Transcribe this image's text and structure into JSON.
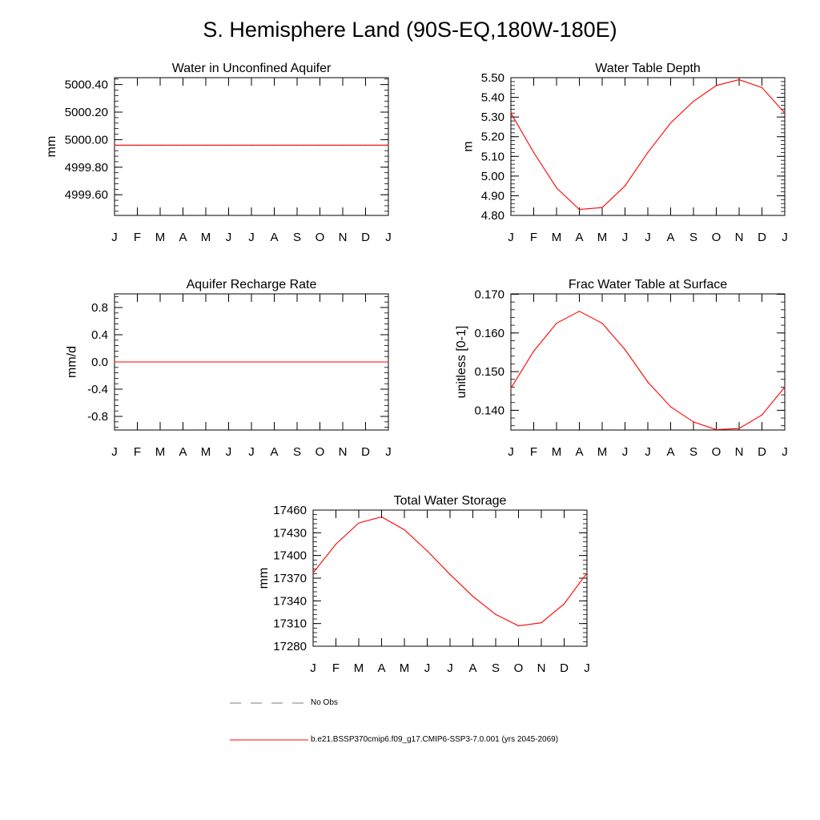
{
  "title": "S. Hemisphere Land (90S-EQ,180W-180E)",
  "month_labels": [
    "J",
    "F",
    "M",
    "A",
    "M",
    "J",
    "J",
    "A",
    "S",
    "O",
    "N",
    "D",
    "J"
  ],
  "legend": {
    "obs_label": "No Obs",
    "model_label": "b.e21.BSSP370cmip6.f09_g17.CMIP6-SSP3-7.0.001 (yrs 2045-2069)",
    "obs_color": "#7f7f7f",
    "model_color": "#ff0000"
  },
  "chart_data": [
    {
      "type": "line",
      "title": "Water in Unconfined Aquifer",
      "ylabel": "mm",
      "ylim": [
        4999.45,
        5000.45
      ],
      "yticks": [
        4999.6,
        4999.8,
        5000.0,
        5000.2,
        5000.4
      ],
      "ytick_labels": [
        "4999.60",
        "4999.80",
        "5000.00",
        "5000.20",
        "5000.40"
      ],
      "minor_step": 0.04,
      "series": [
        {
          "values": [
            4999.96,
            4999.96,
            4999.96,
            4999.96,
            4999.96,
            4999.96,
            4999.96,
            4999.96,
            4999.96,
            4999.96,
            4999.96,
            4999.96,
            4999.96
          ]
        }
      ]
    },
    {
      "type": "line",
      "title": "Water Table Depth",
      "ylabel": "m",
      "ylim": [
        4.8,
        5.5
      ],
      "yticks": [
        4.8,
        4.9,
        5.0,
        5.1,
        5.2,
        5.3,
        5.4,
        5.5
      ],
      "ytick_labels": [
        "4.80",
        "4.90",
        "5.00",
        "5.10",
        "5.20",
        "5.30",
        "5.40",
        "5.50"
      ],
      "minor_step": 0.02,
      "series": [
        {
          "values": [
            5.32,
            5.12,
            4.94,
            4.83,
            4.84,
            4.95,
            5.12,
            5.27,
            5.38,
            5.46,
            5.49,
            5.45,
            5.32
          ]
        }
      ]
    },
    {
      "type": "line",
      "title": "Aquifer Recharge Rate",
      "ylabel": "mm/d",
      "ylim": [
        -1.0,
        1.0
      ],
      "yticks": [
        -0.8,
        -0.4,
        0.0,
        0.4,
        0.8
      ],
      "ytick_labels": [
        "-0.8",
        "-0.4",
        "0.0",
        "0.4",
        "0.8"
      ],
      "minor_step": 0.08,
      "series": [
        {
          "values": [
            0,
            0,
            0,
            0,
            0,
            0,
            0,
            0,
            0,
            0,
            0,
            0,
            0
          ]
        }
      ]
    },
    {
      "type": "line",
      "title": "Frac Water Table at Surface",
      "ylabel": "unitless [0-1]",
      "ylim": [
        0.1349,
        0.1701
      ],
      "yticks": [
        0.14,
        0.15,
        0.16,
        0.17
      ],
      "ytick_labels": [
        "0.140",
        "0.150",
        "0.160",
        "0.170"
      ],
      "minor_step": 0.002,
      "series": [
        {
          "values": [
            0.1457,
            0.1553,
            0.1625,
            0.1656,
            0.1625,
            0.1557,
            0.1473,
            0.1409,
            0.137,
            0.135,
            0.1353,
            0.1388,
            0.146
          ]
        }
      ]
    },
    {
      "type": "line",
      "title": "Total Water Storage",
      "ylabel": "mm",
      "ylim": [
        17280,
        17460
      ],
      "yticks": [
        17280,
        17310,
        17340,
        17370,
        17400,
        17430,
        17460
      ],
      "ytick_labels": [
        "17280",
        "17310",
        "17340",
        "17370",
        "17400",
        "17430",
        "17460"
      ],
      "minor_step": 6,
      "series": [
        {
          "values": [
            17377,
            17415,
            17443,
            17451,
            17434,
            17406,
            17375,
            17346,
            17322,
            17307,
            17311,
            17336,
            17377
          ]
        }
      ]
    }
  ]
}
